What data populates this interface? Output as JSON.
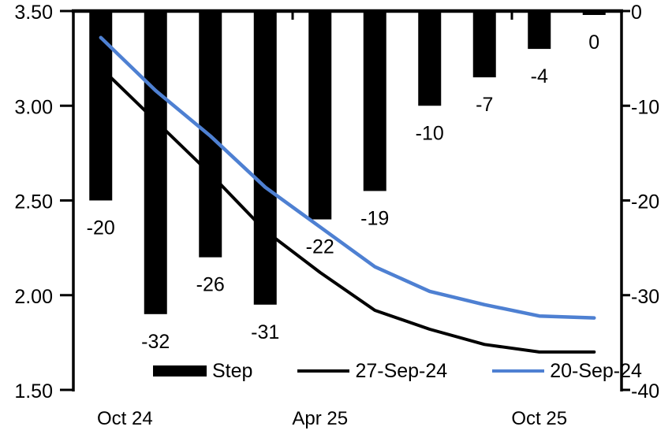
{
  "chart_data": {
    "type": "combo-bar-line",
    "title": "",
    "n_categories": 10,
    "bar_series": {
      "name": "Step",
      "axis": "right",
      "color": "#000000",
      "values": [
        -20,
        -32,
        -26,
        -31,
        -22,
        -19,
        -10,
        -7,
        -4,
        0
      ],
      "data_labels": [
        "-20",
        "-32",
        "-26",
        "-31",
        "-22",
        "-19",
        "-10",
        "-7",
        "-4",
        "0"
      ]
    },
    "line_series": [
      {
        "name": "27-Sep-24",
        "axis": "left",
        "color": "#000000",
        "values": [
          3.2,
          2.92,
          2.64,
          2.34,
          2.12,
          1.92,
          1.82,
          1.74,
          1.7,
          1.7
        ]
      },
      {
        "name": "20-Sep-24",
        "axis": "left",
        "color": "#4e80d2",
        "values": [
          3.36,
          3.08,
          2.84,
          2.57,
          2.36,
          2.15,
          2.02,
          1.95,
          1.89,
          1.88
        ]
      }
    ],
    "left_axis": {
      "min": 1.5,
      "max": 3.5,
      "tick_labels": [
        "3.50",
        "3.00",
        "2.50",
        "2.00",
        "1.50"
      ]
    },
    "right_axis": {
      "min": -40,
      "max": 0,
      "tick_labels": [
        "0",
        "-10",
        "-20",
        "-30",
        "-40"
      ]
    },
    "x_axis": {
      "tick_labels": [
        {
          "text": "Oct 24",
          "pos": 0.44
        },
        {
          "text": "Apr 25",
          "pos": 4.0
        },
        {
          "text": "Oct 25",
          "pos": 8.0
        }
      ],
      "top_boundary_ticks": [
        4,
        8
      ]
    },
    "legend": {
      "position": "bottom",
      "items": [
        {
          "label": "Step",
          "type": "bar",
          "color": "#000000"
        },
        {
          "label": "27-Sep-24",
          "type": "line",
          "color": "#000000"
        },
        {
          "label": "20-Sep-24",
          "type": "line",
          "color": "#4e80d2"
        }
      ]
    },
    "grid": "off"
  }
}
